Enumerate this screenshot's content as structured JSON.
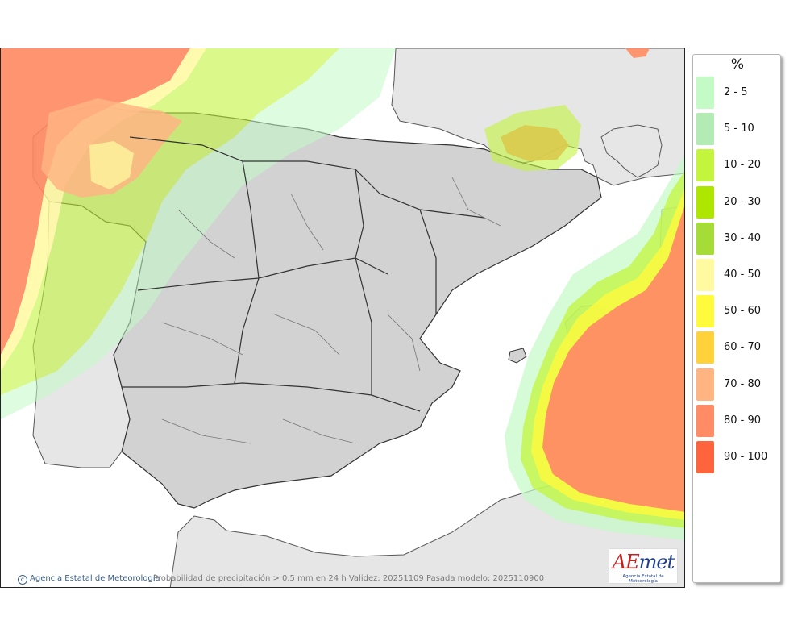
{
  "legend": {
    "title": "%",
    "items": [
      {
        "label": "2 - 5",
        "color": "#c3fac6"
      },
      {
        "label": "5 - 10",
        "color": "#b4eab4"
      },
      {
        "label": "10 - 20",
        "color": "#c3f53d"
      },
      {
        "label": "20 - 30",
        "color": "#aee600"
      },
      {
        "label": "30 - 40",
        "color": "#a5dc37"
      },
      {
        "label": "40 - 50",
        "color": "#fff9a0"
      },
      {
        "label": "50 - 60",
        "color": "#fffa3c"
      },
      {
        "label": "60 - 70",
        "color": "#ffd23c"
      },
      {
        "label": "70 - 80",
        "color": "#ffb482"
      },
      {
        "label": "80 - 90",
        "color": "#ff8c64"
      },
      {
        "label": "90 - 100",
        "color": "#ff643c"
      }
    ]
  },
  "footer": {
    "agency": "Agencia Estatal de Meteorología",
    "caption": "Probabilidad de precipitación > 0.5 mm en 24 h Validez: 20251109 Pasada modelo: 2025110900"
  },
  "logo": {
    "icon": "aemet-logo",
    "word_first": "AE",
    "word_rest": "met",
    "subtitle": "Agencia Estatal de Meteorología"
  },
  "colors": {
    "land": "#d2d2d2",
    "foreign_land": "#e6e6e6",
    "sea": "#ffffff",
    "border": "#333333"
  }
}
